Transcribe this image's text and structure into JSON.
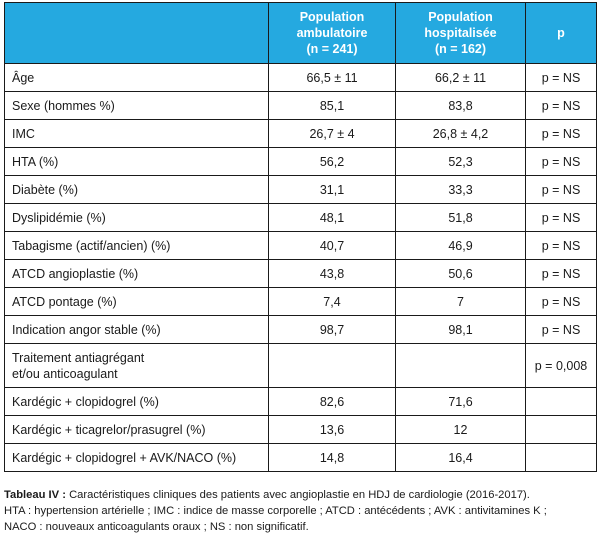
{
  "table": {
    "headers": [
      "",
      "Population ambulatoire (n = 241)",
      "Population hospitalisée (n = 162)",
      "p"
    ],
    "header_lines": [
      [],
      [
        "Population",
        "ambulatoire",
        "(n = 241)"
      ],
      [
        "Population",
        "hospitalisée",
        "(n = 162)"
      ],
      [
        "p"
      ]
    ],
    "rows": [
      {
        "label": "Âge",
        "amb": "66,5 ± 11",
        "hosp": "66,2 ± 11",
        "p": "p = NS"
      },
      {
        "label": "Sexe (hommes %)",
        "amb": "85,1",
        "hosp": "83,8",
        "p": "p = NS"
      },
      {
        "label": "IMC",
        "amb": "26,7 ± 4",
        "hosp": "26,8 ± 4,2",
        "p": "p = NS"
      },
      {
        "label": "HTA (%)",
        "amb": "56,2",
        "hosp": "52,3",
        "p": "p = NS"
      },
      {
        "label": "Diabète (%)",
        "amb": "31,1",
        "hosp": "33,3",
        "p": "p = NS"
      },
      {
        "label": "Dyslipidémie (%)",
        "amb": "48,1",
        "hosp": "51,8",
        "p": "p = NS"
      },
      {
        "label": "Tabagisme (actif/ancien) (%)",
        "amb": "40,7",
        "hosp": "46,9",
        "p": "p = NS"
      },
      {
        "label": "ATCD angioplastie (%)",
        "amb": "43,8",
        "hosp": "50,6",
        "p": "p = NS"
      },
      {
        "label": "ATCD pontage (%)",
        "amb": "7,4",
        "hosp": "7",
        "p": "p = NS"
      },
      {
        "label": "Indication angor stable (%)",
        "amb": "98,7",
        "hosp": "98,1",
        "p": "p = NS"
      },
      {
        "label": "Traitement antiagrégant et/ou anticoagulant",
        "label_lines": [
          "Traitement antiagrégant",
          "et/ou anticoagulant"
        ],
        "amb": "",
        "hosp": "",
        "p": "p = 0,008"
      },
      {
        "label": "Kardégic + clopidogrel (%)",
        "amb": "82,6",
        "hosp": "71,6",
        "p": ""
      },
      {
        "label": "Kardégic + ticagrelor/prasugrel (%)",
        "amb": "13,6",
        "hosp": "12",
        "p": ""
      },
      {
        "label": "Kardégic + clopidogrel + AVK/NACO (%)",
        "amb": "14,8",
        "hosp": "16,4",
        "p": ""
      }
    ]
  },
  "caption": {
    "label": "Tableau IV :",
    "title": "Caractéristiques cliniques des patients avec angioplastie en HDJ de cardiologie (2016-2017).",
    "abbrev_line1": "HTA : hypertension artérielle ; IMC : indice de masse corporelle ; ATCD : antécédents ; AVK : antivitamines K ;",
    "abbrev_line2": "NACO : nouveaux anticoagulants oraux ; NS : non significatif."
  },
  "colors": {
    "header_bg": "#25a9e0",
    "header_text": "#ffffff",
    "border": "#1a1a1a"
  }
}
